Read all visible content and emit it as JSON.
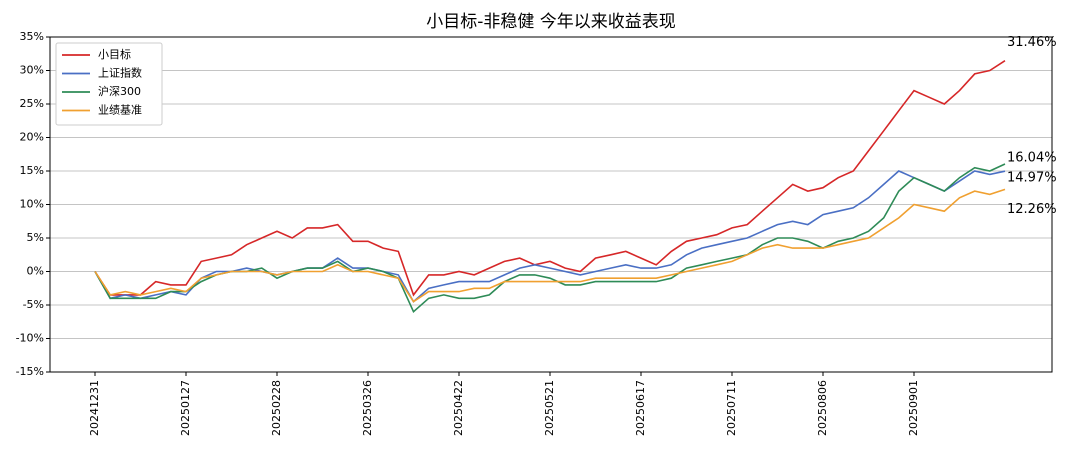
{
  "chart_data": {
    "type": "line",
    "title": "小目标-非稳健 今年以来收益表现",
    "categories": [
      "20241231",
      null,
      null,
      null,
      null,
      null,
      "20250127",
      null,
      null,
      null,
      null,
      null,
      "20250228",
      null,
      null,
      null,
      null,
      null,
      "20250326",
      null,
      null,
      null,
      null,
      null,
      "20250422",
      null,
      null,
      null,
      null,
      null,
      "20250521",
      null,
      null,
      null,
      null,
      null,
      "20250617",
      null,
      null,
      null,
      null,
      null,
      "20250711",
      null,
      null,
      null,
      null,
      null,
      "20250806",
      null,
      null,
      null,
      null,
      null,
      "20250901",
      null,
      null,
      null,
      null,
      null,
      null
    ],
    "series": [
      {
        "name": "小目标",
        "color": "#d62728",
        "values": [
          0,
          -3.5,
          -3.5,
          -3.5,
          -1.5,
          -2,
          -2,
          1.5,
          2,
          2.5,
          4,
          5,
          6,
          5,
          6.5,
          6.5,
          7,
          4.5,
          4.5,
          3.5,
          3,
          -3.5,
          -0.5,
          -0.5,
          0,
          -0.5,
          0.5,
          1.5,
          2,
          1,
          1.5,
          0.5,
          0,
          2,
          2.5,
          3,
          2,
          1,
          3,
          4.5,
          5,
          5.5,
          6.5,
          7,
          9,
          11,
          13,
          12,
          12.5,
          14,
          15,
          18,
          21,
          24,
          27,
          26,
          25,
          27,
          29.5,
          30,
          31.46
        ],
        "value_labels": [
          null,
          null,
          null,
          null,
          null,
          null,
          null,
          null,
          null,
          null,
          null,
          null,
          null,
          null,
          null,
          null,
          null,
          null,
          null,
          null,
          null,
          null,
          null,
          null,
          null,
          null,
          null,
          null,
          null,
          null,
          null,
          null,
          null,
          null,
          null,
          null,
          null,
          null,
          null,
          null,
          null,
          null,
          null,
          null,
          null,
          null,
          null,
          null,
          null,
          null,
          null,
          null,
          null,
          null,
          null,
          null,
          null,
          null,
          null,
          null,
          "31.46%"
        ]
      },
      {
        "name": "上证指数",
        "color": "#4a6fc4",
        "values": [
          0,
          -4,
          -3.5,
          -4,
          -3.5,
          -3,
          -3.5,
          -1,
          0,
          0,
          0.5,
          0,
          -0.5,
          0,
          0.5,
          0.5,
          2,
          0.5,
          0.5,
          0,
          -0.5,
          -4.5,
          -2.5,
          -2,
          -1.5,
          -1.5,
          -1.5,
          -0.5,
          0.5,
          1,
          0.5,
          0,
          -0.5,
          0,
          0.5,
          1,
          0.5,
          0.5,
          1,
          2.5,
          3.5,
          4,
          4.5,
          5,
          6,
          7,
          7.5,
          7,
          8.5,
          9,
          9.5,
          11,
          13,
          15,
          14,
          13,
          12,
          13.5,
          15,
          14.5,
          14.97
        ],
        "value_labels": [
          null,
          null,
          null,
          null,
          null,
          null,
          null,
          null,
          null,
          null,
          null,
          null,
          null,
          null,
          null,
          null,
          null,
          null,
          null,
          null,
          null,
          null,
          null,
          null,
          null,
          null,
          null,
          null,
          null,
          null,
          null,
          null,
          null,
          null,
          null,
          null,
          null,
          null,
          null,
          null,
          null,
          null,
          null,
          null,
          null,
          null,
          null,
          null,
          null,
          null,
          null,
          null,
          null,
          null,
          null,
          null,
          null,
          null,
          null,
          null,
          "14.97%"
        ]
      },
      {
        "name": "沪深300",
        "color": "#2e8b57",
        "values": [
          0,
          -4,
          -4,
          -4,
          -4,
          -3,
          -3,
          -1.5,
          -0.5,
          0,
          0,
          0.5,
          -1,
          0,
          0.5,
          0.5,
          1.5,
          0,
          0.5,
          0,
          -1,
          -6,
          -4,
          -3.5,
          -4,
          -4,
          -3.5,
          -1.5,
          -0.5,
          -0.5,
          -1,
          -2,
          -2,
          -1.5,
          -1.5,
          -1.5,
          -1.5,
          -1.5,
          -1,
          0.5,
          1,
          1.5,
          2,
          2.5,
          4,
          5,
          5,
          4.5,
          3.5,
          4.5,
          5,
          6,
          8,
          12,
          14,
          13,
          12,
          14,
          15.5,
          15,
          16.04
        ],
        "value_labels": [
          null,
          null,
          null,
          null,
          null,
          null,
          null,
          null,
          null,
          null,
          null,
          null,
          null,
          null,
          null,
          null,
          null,
          null,
          null,
          null,
          null,
          null,
          null,
          null,
          null,
          null,
          null,
          null,
          null,
          null,
          null,
          null,
          null,
          null,
          null,
          null,
          null,
          null,
          null,
          null,
          null,
          null,
          null,
          null,
          null,
          null,
          null,
          null,
          null,
          null,
          null,
          null,
          null,
          null,
          null,
          null,
          null,
          null,
          null,
          null,
          "16.04%"
        ]
      },
      {
        "name": "业绩基准",
        "color": "#f0a030",
        "values": [
          0,
          -3.5,
          -3,
          -3.5,
          -3,
          -2.5,
          -3,
          -1,
          -0.5,
          0,
          0,
          0,
          -0.5,
          0,
          0,
          0,
          1,
          0,
          0,
          -0.5,
          -1,
          -4.5,
          -3,
          -3,
          -3,
          -2.5,
          -2.5,
          -1.5,
          -1.5,
          -1.5,
          -1.5,
          -1.5,
          -1.5,
          -1,
          -1,
          -1,
          -1,
          -1,
          -0.5,
          0,
          0.5,
          1,
          1.5,
          2.5,
          3.5,
          4,
          3.5,
          3.5,
          3.5,
          4,
          4.5,
          5,
          6.5,
          8,
          10,
          9.5,
          9,
          11,
          12,
          11.5,
          12.26
        ],
        "value_labels": [
          null,
          null,
          null,
          null,
          null,
          null,
          null,
          null,
          null,
          null,
          null,
          null,
          null,
          null,
          null,
          null,
          null,
          null,
          null,
          null,
          null,
          null,
          null,
          null,
          null,
          null,
          null,
          null,
          null,
          null,
          null,
          null,
          null,
          null,
          null,
          null,
          null,
          null,
          null,
          null,
          null,
          null,
          null,
          null,
          null,
          null,
          null,
          null,
          null,
          null,
          null,
          null,
          null,
          null,
          null,
          null,
          null,
          null,
          null,
          null,
          "12.26%"
        ]
      }
    ],
    "ylim": [
      -15,
      35
    ],
    "yticks": [
      {
        "value": -15,
        "label": "-15%"
      },
      {
        "value": -10,
        "label": "-10%"
      },
      {
        "value": -5,
        "label": "-5%"
      },
      {
        "value": 0,
        "label": "0%"
      },
      {
        "value": 5,
        "label": "5%"
      },
      {
        "value": 10,
        "label": "10%"
      },
      {
        "value": 15,
        "label": "15%"
      },
      {
        "value": 20,
        "label": "20%"
      },
      {
        "value": 25,
        "label": "25%"
      },
      {
        "value": 30,
        "label": "30%"
      },
      {
        "value": 35,
        "label": "35%"
      }
    ],
    "grid": true,
    "legend": "upper left"
  }
}
